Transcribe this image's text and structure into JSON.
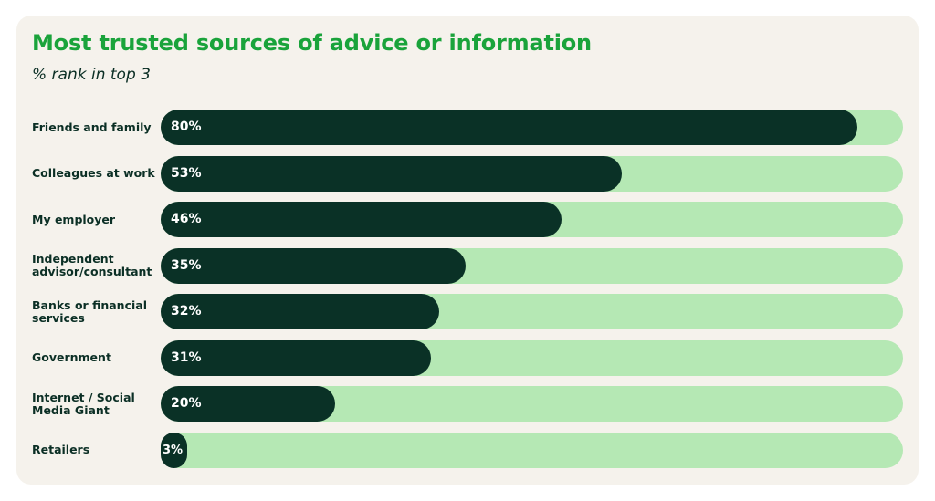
{
  "chart_data": {
    "type": "bar",
    "orientation": "horizontal",
    "title": "Most trusted sources of advice or information",
    "subtitle": "% rank in top 3",
    "categories": [
      "Friends and family",
      "Colleagues at work",
      "My employer",
      "Independent advisor/consultant",
      "Banks or financial services",
      "Government",
      "Internet / Social Media Giant",
      "Retailers"
    ],
    "values": [
      80,
      53,
      46,
      35,
      32,
      31,
      20,
      3
    ],
    "value_labels": [
      "80%",
      "53%",
      "46%",
      "35%",
      "32%",
      "31%",
      "20%",
      "3%"
    ],
    "xlim": [
      0,
      100
    ],
    "grid": false,
    "legend": "none",
    "colors": {
      "title": "#1aa33b",
      "bar_fill": "#0a3126",
      "bar_track": "#b5e8b4",
      "card_background": "#f5f2ec",
      "label_text": "#0b2f25"
    }
  }
}
